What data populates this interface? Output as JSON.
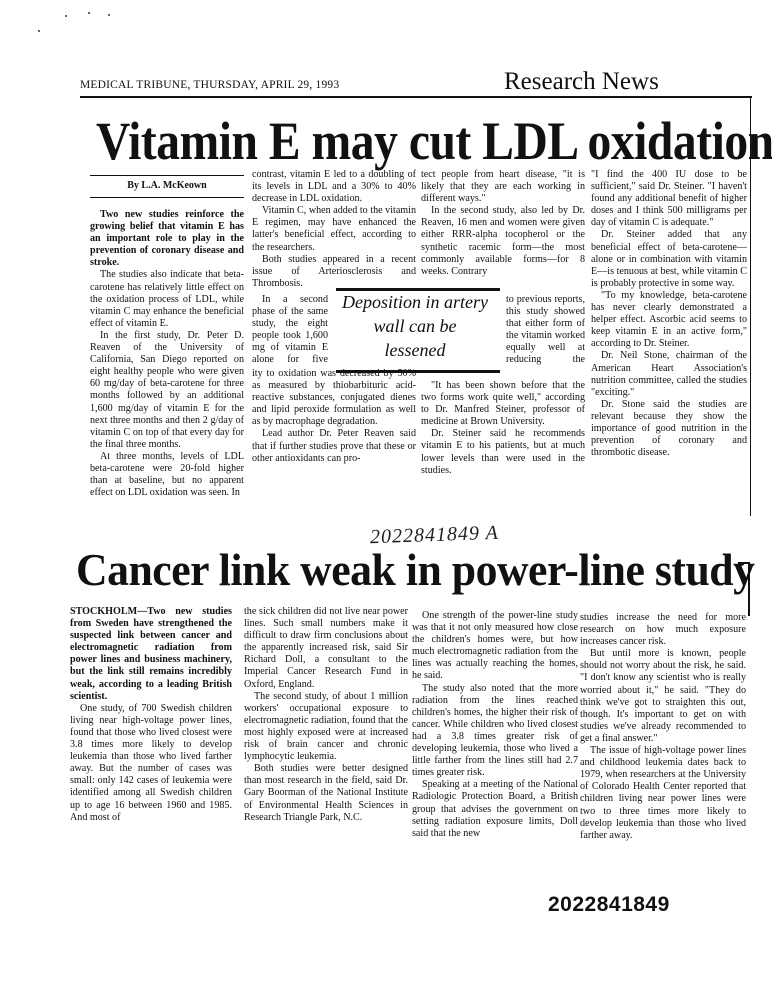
{
  "header": {
    "publication_date": "MEDICAL TRIBUNE, THURSDAY, APRIL 29, 1993",
    "section": "Research News"
  },
  "article1": {
    "headline": "Vitamin E may cut LDL oxidation",
    "byline": "By L.A. McKeown",
    "lede": "Two new studies reinforce the growing belief that vitamin E has an important role to play in the prevention of coronary disease and stroke.",
    "col1": [
      "The studies also indicate that beta-carotene has relatively little effect on the oxidation process of LDL, while vitamin C may enhance the beneficial effect of vitamin E.",
      "In the first study, Dr. Peter D. Reaven of the University of California, San Diego reported on eight healthy people who were given 60 mg/day of beta-carotene for three months followed by an additional 1,600 mg/day of vitamin E for the next three months and then 2 g/day of vitamin C on top of that every day for the final three months.",
      "At three months, levels of LDL beta-carotene were 20-fold higher than at baseline, but no apparent effect on LDL oxidation was seen. In"
    ],
    "col2_top": [
      "contrast, vitamin E led to a doubling of its levels in LDL and a 30% to 40% decrease in LDL oxidation.",
      "Vitamin C, when added to the vitamin E regimen, may have enhanced the latter's beneficial effect, according to the researchers.",
      "Both studies appeared in a recent issue of Arteriosclerosis and Thrombosis."
    ],
    "col2_narrow": "In a second phase of the same study, the eight people took 1,600 mg of vitamin E alone for five months. LDL susceptibil-",
    "col2_bottom": [
      "ity to oxidation was decreased by 50% as measured by thiobarbituric acid-reactive substances, conjugated dienes and lipid peroxide formulation as well as by macrophage degradation.",
      "Lead author Dr. Peter Reaven said that if further studies prove that these or other antioxidants can pro-"
    ],
    "col3_top": [
      "tect people from heart disease, \"it is likely that they are each working in different ways.\"",
      "In the second study, also led by Dr. Reaven, 16 men and women were given either RRR-alpha tocopherol or the synthetic racemic form—the most commonly available forms—for 8 weeks. Contrary"
    ],
    "col3_narrow": "to previous reports, this study showed that either form of the vitamin worked equally well at reducing the oxidation of LDL.",
    "col3_bottom": [
      "\"It has been shown before that the two forms work quite well,\" according to Dr. Manfred Steiner, professor of medicine at Brown University.",
      "Dr. Steiner said he recommends vitamin E to his patients, but at much lower levels than were used in the studies."
    ],
    "col4": [
      "\"I find the 400 IU dose to be sufficient,\" said Dr. Steiner. \"I haven't found any additional benefit of higher doses and I think 500 milligrams per day of vitamin C is adequate.\"",
      "Dr. Steiner added that any beneficial effect of beta-carotene—alone or in combination with vitamin E—is tenuous at best, while vitamin C is probably protective in some way.",
      "\"To my knowledge, beta-carotene has never clearly demonstrated a helper effect. Ascorbic acid seems to keep vitamin E in an active form,\" according to Dr. Steiner.",
      "Dr. Neil Stone, chairman of the American Heart Association's nutrition committee, called the studies \"exciting.\"",
      "Dr. Stone said the studies are relevant because they show the importance of good nutrition in the prevention of coronary and thrombotic disease."
    ],
    "pullquote": "Deposition in artery wall can be lessened"
  },
  "handwritten_note": "2022841849 A",
  "article2": {
    "headline": "Cancer link weak in power-line study",
    "lede": "STOCKHOLM—Two new studies from Sweden have strengthened the suspected link between cancer and electromagnetic radiation from power lines and business machinery, but the link still remains incredibly weak, according to a leading British scientist.",
    "col1": [
      "One study, of 700 Swedish children living near high-voltage power lines, found that those who lived closest were 3.8 times more likely to develop leukemia than those who lived farther away. But the number of cases was small: only 142 cases of leukemia were identified among all Swedish children up to age 16 between 1960 and 1985. And most of"
    ],
    "col2": [
      "the sick children did not live near power lines. Such small numbers make it difficult to draw firm conclusions about the apparently increased risk, said Sir Richard Doll, a consultant to the Imperial Cancer Research Fund in Oxford, England.",
      "The second study, of about 1 million workers' occupational exposure to electromagnetic radiation, found that the most highly exposed were at increased risk of brain cancer and chronic lymphocytic leukemia.",
      "Both studies were better designed than most research in the field, said Dr. Gary Boorman of the National Institute of Environmental Health Sciences in Research Triangle Park, N.C."
    ],
    "col3": [
      "One strength of the power-line study was that it not only measured how close the children's homes were, but how much electromagnetic radiation from the lines was actually reaching the homes, he said.",
      "The study also noted that the more radiation from the lines reached children's homes, the higher their risk of cancer. While children who lived closest had a 3.8 times greater risk of developing leukemia, those who lived a little farther from the lines still had 2.7 times greater risk.",
      "Speaking at a meeting of the National Radiologic Protection Board, a British group that advises the government on setting radiation exposure limits, Doll said that the new"
    ],
    "col4": [
      "studies increase the need for more research on how much exposure increases cancer risk.",
      "But until more is known, people should not worry about the risk, he said. \"I don't know any scientist who is really worried about it,\" he said. \"They do think we've got to straighten this out, though. It's important to get on with studies we've already recommended to get a final answer.\"",
      "The issue of high-voltage power lines and childhood leukemia dates back to 1979, when researchers at the University of Colorado Health Center reported that children living near power lines were two to three times more likely to develop leukemia than those who lived farther away."
    ]
  },
  "document_number": "2022841849"
}
